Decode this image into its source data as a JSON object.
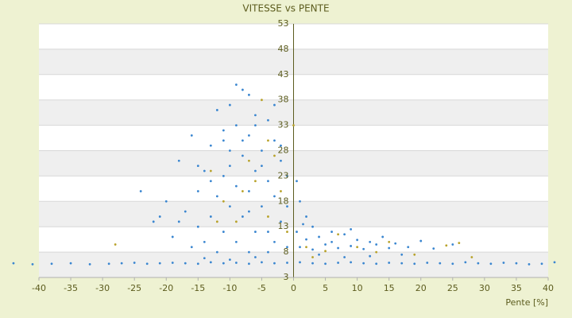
{
  "chart_data": {
    "type": "scatter",
    "title": "VITESSE vs PENTE",
    "x_label": "Pente [%]",
    "xlim": [
      -40,
      40
    ],
    "xticks": [
      -40,
      -35,
      -30,
      -25,
      -20,
      -15,
      -10,
      -5,
      0,
      5,
      10,
      15,
      20,
      25,
      30,
      35,
      40
    ],
    "ylim": [
      3,
      53
    ],
    "yticks": [
      3,
      8,
      13,
      18,
      23,
      28,
      33,
      38,
      43,
      48,
      53
    ],
    "grid": true,
    "bands": true,
    "series": [
      {
        "color": "#3a86d0",
        "x": [
          -44,
          -41,
          -38,
          -35,
          -32,
          -29,
          -27,
          -25,
          -23,
          -21,
          -19,
          -17,
          -15,
          -13,
          -11,
          -9,
          -7,
          -5,
          -3,
          -1,
          1,
          3,
          5,
          7,
          9,
          11,
          13,
          15,
          17,
          19,
          21,
          23,
          25,
          27,
          29,
          31,
          33,
          35,
          37,
          39,
          41,
          1,
          2,
          3,
          4,
          5,
          6,
          7,
          8,
          9,
          10,
          11,
          12,
          13,
          14,
          15,
          16,
          18,
          20,
          22,
          25,
          6,
          9,
          4,
          12,
          17,
          8,
          3,
          2,
          1,
          0.5,
          1.5,
          -9,
          -8,
          -7,
          -10,
          -12,
          -6,
          -9,
          -4,
          -11,
          -16,
          -7,
          -3,
          -13,
          -10,
          -5,
          -8,
          -18,
          -2,
          -14,
          -6,
          -11,
          -4,
          -9,
          -15,
          -7,
          -12,
          -3,
          -20,
          -10,
          -5,
          -17,
          -13,
          -8,
          -2,
          -22,
          -15,
          -11,
          -6,
          -19,
          -14,
          -9,
          -3,
          -16,
          -12,
          -7,
          -1,
          -4,
          -8,
          -6,
          -5,
          -10,
          -13,
          -7,
          -18,
          -24,
          -21,
          -15,
          -11,
          -3,
          -2,
          -1,
          -1,
          0.5,
          -4,
          -10,
          -14,
          -6
        ],
        "values": [
          5.8,
          5.6,
          5.7,
          5.8,
          5.6,
          5.7,
          5.8,
          5.9,
          5.7,
          5.8,
          5.9,
          5.8,
          5.7,
          6,
          5.8,
          5.9,
          5.7,
          6,
          5.8,
          5.9,
          6,
          5.8,
          5.7,
          5.9,
          6,
          5.8,
          5.7,
          5.9,
          5.8,
          5.7,
          5.9,
          5.8,
          5.7,
          6,
          5.8,
          5.7,
          5.9,
          5.8,
          5.6,
          5.7,
          6,
          9,
          10.5,
          8.5,
          11,
          9.5,
          10,
          8.8,
          11.5,
          9.2,
          10.4,
          8.6,
          10,
          9.5,
          11,
          8.8,
          9.7,
          9,
          10.2,
          8.7,
          9.5,
          12,
          12.5,
          7.5,
          7.2,
          7.5,
          7,
          13,
          15,
          18,
          22,
          13.5,
          41,
          40,
          39,
          37,
          36,
          35,
          33,
          34,
          32,
          31,
          31,
          30,
          29,
          28,
          28,
          27,
          26,
          26,
          24,
          24,
          23,
          22,
          21,
          20,
          20,
          19,
          19,
          18,
          17,
          17,
          16,
          15,
          15,
          14,
          14,
          13,
          12,
          12,
          11,
          10,
          10,
          10,
          9,
          8,
          8,
          9,
          12,
          30,
          33,
          25,
          25,
          22,
          16,
          14,
          20,
          15,
          25,
          30,
          37,
          29,
          23,
          17,
          12,
          8,
          6.5,
          6.8,
          7
        ]
      },
      {
        "color": "#b8a22a",
        "x": [
          -28,
          -5,
          -4,
          -3,
          -6,
          -8,
          -13,
          -2,
          -4,
          -9,
          -1,
          2,
          5,
          7,
          10,
          13,
          15,
          19,
          24,
          26,
          28,
          0,
          -11,
          -7,
          3,
          -12
        ],
        "values": [
          9.5,
          38,
          30,
          27,
          22,
          20,
          24,
          20,
          15,
          14,
          12,
          9,
          8.2,
          11.5,
          9,
          8,
          10,
          7.5,
          9.3,
          9.8,
          7,
          33,
          18,
          26,
          7,
          14
        ]
      }
    ]
  }
}
